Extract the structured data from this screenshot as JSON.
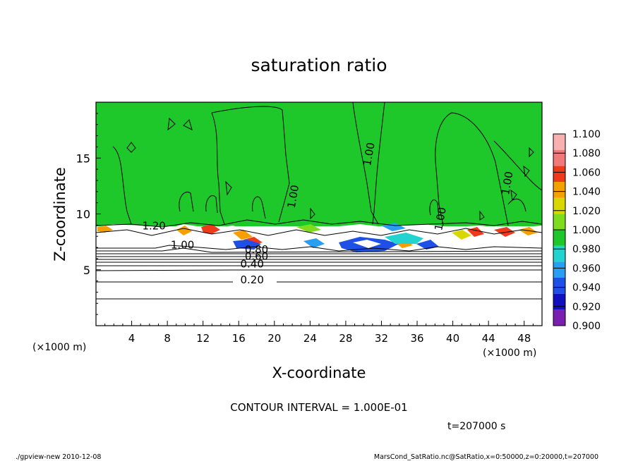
{
  "chart_data": {
    "type": "heatmap",
    "title": "saturation ratio",
    "xlabel": "X-coordinate",
    "ylabel": "Z-coordinate",
    "x_unit_left": "(×1000 m)",
    "x_unit_right": "(×1000 m)",
    "xlim": [
      0,
      50
    ],
    "ylim": [
      0,
      20
    ],
    "x_ticks": [
      4,
      8,
      12,
      16,
      20,
      24,
      28,
      32,
      36,
      40,
      44,
      48
    ],
    "y_ticks": [
      5,
      10,
      15
    ],
    "colorbar": {
      "levels": [
        "0.900",
        "0.920",
        "0.940",
        "0.960",
        "0.980",
        "1.000",
        "1.020",
        "1.040",
        "1.060",
        "1.080",
        "1.100"
      ],
      "colors": [
        "#7a1fb0",
        "#1010c0",
        "#1e4fe6",
        "#2a9ef0",
        "#22d3d0",
        "#1fc82a",
        "#7ddc1c",
        "#d8d800",
        "#f5a000",
        "#ee3a1a",
        "#f07a7a",
        "#f8b0b0"
      ]
    },
    "contour_labels": [
      {
        "text": "1.20",
        "x": 6.5,
        "z": 8.6
      },
      {
        "text": "1.00",
        "x": 9.7,
        "z": 6.9
      },
      {
        "text": "0.80",
        "x": 18.0,
        "z": 6.5
      },
      {
        "text": "0.60",
        "x": 18.0,
        "z": 5.9
      },
      {
        "text": "0.40",
        "x": 17.5,
        "z": 5.2
      },
      {
        "text": "0.20",
        "x": 17.5,
        "z": 3.8
      },
      {
        "text": "1.00",
        "x": 22.5,
        "z": 11.5
      },
      {
        "text": "1.00",
        "x": 31.0,
        "z": 15.3
      },
      {
        "text": "1.00",
        "x": 39.0,
        "z": 9.5
      },
      {
        "text": "1.00",
        "x": 46.5,
        "z": 12.7
      }
    ],
    "grid": false,
    "legend": "right"
  },
  "contour_interval_text": "CONTOUR INTERVAL = 1.000E-01",
  "time_text": "t=207000 s",
  "footer_left": "./gpview-new  2010-12-08",
  "footer_right": "MarsCond_SatRatio.nc@SatRatio,x=0:50000,z=0:20000,t=207000"
}
